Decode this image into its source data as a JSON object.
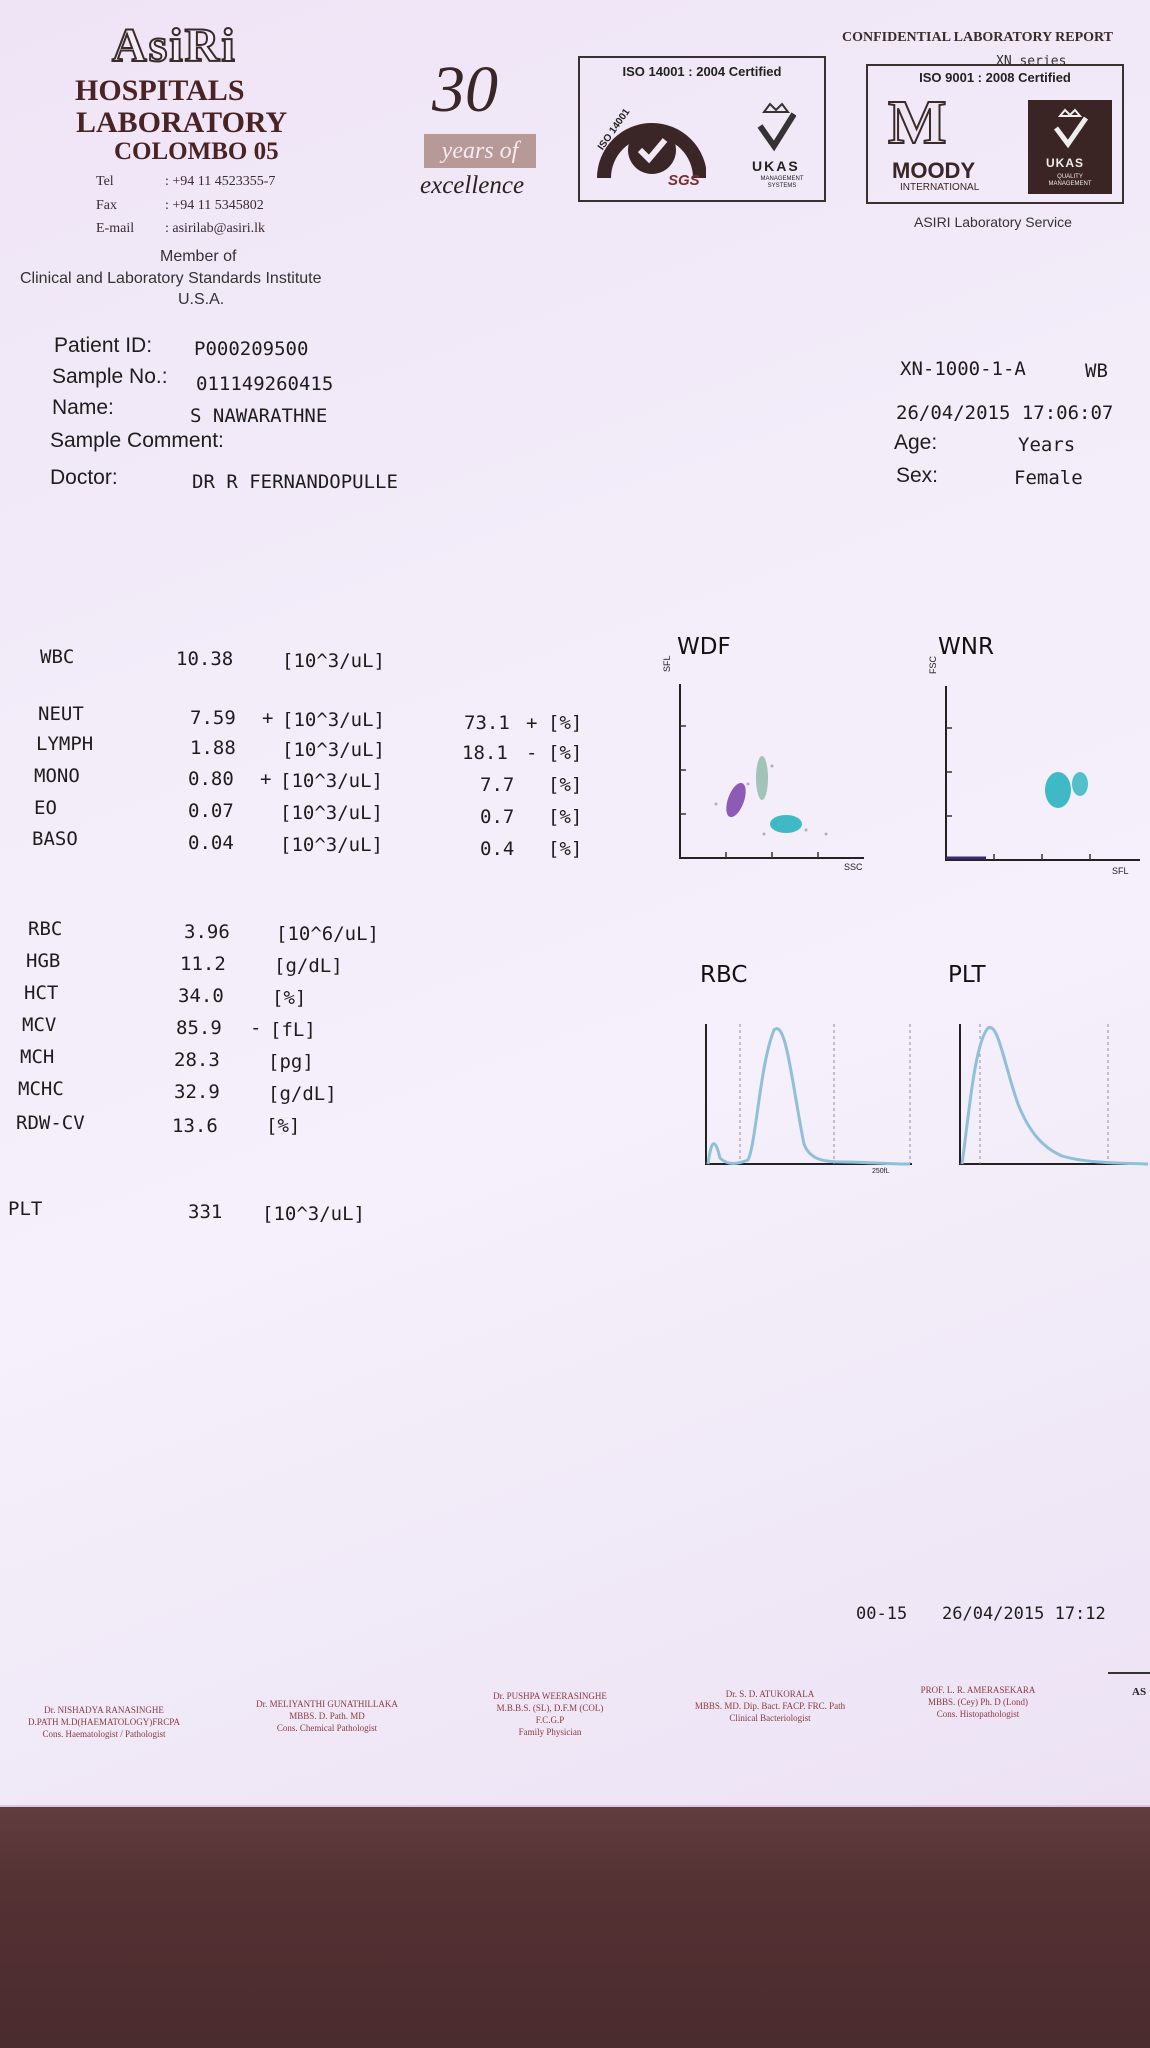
{
  "header": {
    "brand": "AsiRi",
    "line1": "HOSPITALS",
    "line2": "LABORATORY",
    "line3": "COLOMBO 05",
    "tel_label": "Tel",
    "tel_value": ": +94 11 4523355-7",
    "fax_label": "Fax",
    "fax_value": ": +94 11 5345802",
    "email_label": "E-mail",
    "email_value": ": asirilab@asiri.lk",
    "member_1": "Member of",
    "member_2": "Clinical and Laboratory Standards Institute",
    "member_3": "U.S.A.",
    "thirty": "30",
    "years_of": "years of",
    "excellence": "excellence",
    "iso14001_title": "ISO 14001 : 2004 Certified",
    "iso14001_badge": "ISO 14001",
    "sgs": "SGS",
    "ukas": "UKAS",
    "ukas_sub": "MANAGEMENT SYSTEMS",
    "confidential": "CONFIDENTIAL LABORATORY REPORT",
    "xn_series": "XN series",
    "iso9001_title": "ISO 9001 : 2008 Certified",
    "moody": "MOODY",
    "moody_sub": "INTERNATIONAL",
    "ukas2": "UKAS",
    "ukas2_sub": "QUALITY MANAGEMENT",
    "service": "ASIRI Laboratory Service"
  },
  "patient": {
    "id_label": "Patient ID:",
    "id_value": "P000209500",
    "sample_label": "Sample No.:",
    "sample_value": "011149260415",
    "name_label": "Name:",
    "name_value": "S NAWARATHNE",
    "comment_label": "Sample Comment:",
    "doctor_label": "Doctor:",
    "doctor_value": "DR R FERNANDOPULLE",
    "analyzer": "XN-1000-1-A",
    "mode": "WB",
    "datetime": "26/04/2015 17:06:07",
    "age_label": "Age:",
    "age_value": "Years",
    "sex_label": "Sex:",
    "sex_value": "Female"
  },
  "results": {
    "wbc": {
      "name": "WBC",
      "value": "10.38",
      "unit": "[10^3/uL]"
    },
    "diff": [
      {
        "name": "NEUT",
        "value": "7.59",
        "flag": "+",
        "unit": "[10^3/uL]",
        "pct": "73.1",
        "pct_flag": "+",
        "pct_unit": "[%]"
      },
      {
        "name": "LYMPH",
        "value": "1.88",
        "flag": "",
        "unit": "[10^3/uL]",
        "pct": "18.1",
        "pct_flag": "-",
        "pct_unit": "[%]"
      },
      {
        "name": "MONO",
        "value": "0.80",
        "flag": "+",
        "unit": "[10^3/uL]",
        "pct": "7.7",
        "pct_flag": "",
        "pct_unit": "[%]"
      },
      {
        "name": "EO",
        "value": "0.07",
        "flag": "",
        "unit": "[10^3/uL]",
        "pct": "0.7",
        "pct_flag": "",
        "pct_unit": "[%]"
      },
      {
        "name": "BASO",
        "value": "0.04",
        "flag": "",
        "unit": "[10^3/uL]",
        "pct": "0.4",
        "pct_flag": "",
        "pct_unit": "[%]"
      }
    ],
    "rbc": [
      {
        "name": "RBC",
        "value": "3.96",
        "flag": "",
        "unit": "[10^6/uL]"
      },
      {
        "name": "HGB",
        "value": "11.2",
        "flag": "",
        "unit": "[g/dL]"
      },
      {
        "name": "HCT",
        "value": "34.0",
        "flag": "",
        "unit": "[%]"
      },
      {
        "name": "MCV",
        "value": "85.9",
        "flag": "-",
        "unit": "[fL]"
      },
      {
        "name": "MCH",
        "value": "28.3",
        "flag": "",
        "unit": "[pg]"
      },
      {
        "name": "MCHC",
        "value": "32.9",
        "flag": "",
        "unit": "[g/dL]"
      },
      {
        "name": "RDW-CV",
        "value": "13.6",
        "flag": "",
        "unit": "[%]"
      }
    ],
    "plt": {
      "name": "PLT",
      "value": "331",
      "unit": "[10^3/uL]"
    }
  },
  "charts": {
    "wdf_title": "WDF",
    "wdf_y": "SFL",
    "wdf_x": "SSC",
    "wnr_title": "WNR",
    "wnr_y": "FSC",
    "wnr_x": "SFL",
    "rbc_title": "RBC",
    "rbc_x": "250fL",
    "plt_title": "PLT",
    "colors": {
      "neut": "#2bb3c0",
      "lymph": "#7a3fa8",
      "mono": "#7fb09a",
      "line": "#8fc0d8"
    }
  },
  "footer": {
    "code": "00-15",
    "datetime": "26/04/2015 17:12",
    "doctors": [
      {
        "l1": "Dr. NISHADYA RANASINGHE",
        "l2": "D.PATH M.D(HAEMATOLOGY)FRCPA",
        "l3": "Cons. Haematologist / Pathologist"
      },
      {
        "l1": "Dr. MELIYANTHI GUNATHILLAKA",
        "l2": "MBBS. D. Path. MD",
        "l3": "Cons. Chemical Pathologist"
      },
      {
        "l1": "Dr. PUSHPA WEERASINGHE",
        "l2": "M.B.B.S. (SL), D.F.M (COL)",
        "l3": "F.C.G.P",
        "l4": "Family Physician"
      },
      {
        "l1": "Dr. S. D. ATUKORALA",
        "l2": "MBBS. MD. Dip. Bact. FACP. FRC. Path",
        "l3": "Clinical Bacteriologist"
      },
      {
        "l1": "PROF. L. R. AMERASEKARA",
        "l2": "MBBS. (Cey) Ph. D (Lond)",
        "l3": "Cons. Histopathologist"
      }
    ],
    "edge": "AS"
  }
}
